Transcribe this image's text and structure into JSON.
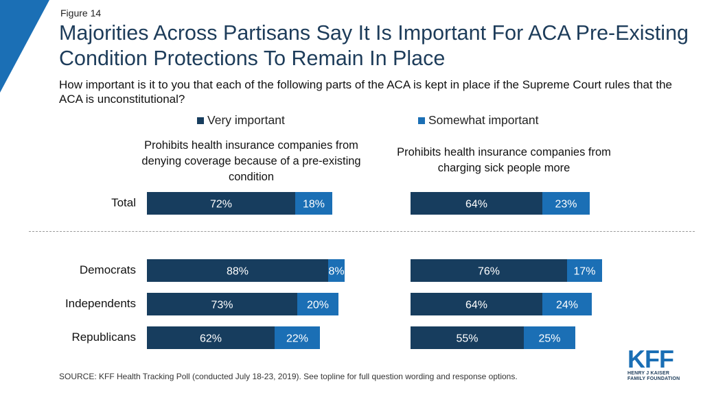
{
  "figure_label": "Figure 14",
  "title": "Majorities Across Partisans Say It Is Important For ACA Pre-Existing Condition Protections To Remain In Place",
  "subtitle": "How important is it to you that each of the following parts of the ACA is kept in place if the Supreme Court rules that the ACA is unconstitutional?",
  "source": "SOURCE: KFF Health Tracking Poll (conducted July 18-23, 2019). See topline for full question wording and response options.",
  "logo": {
    "mark": "KFF",
    "line1": "HENRY J KAISER",
    "line2": "FAMILY FOUNDATION"
  },
  "colors": {
    "very": "#173d5e",
    "somewhat": "#1b6fb5",
    "accent": "#1b6fb5"
  },
  "chart_data": {
    "type": "bar",
    "orientation": "horizontal",
    "stacked": true,
    "legend": {
      "placement": "top",
      "items": [
        "Very important",
        "Somewhat important"
      ]
    },
    "categories": [
      "Total",
      "Democrats",
      "Independents",
      "Republicans"
    ],
    "panels": [
      {
        "title": "Prohibits health insurance companies from denying coverage because of a pre-existing condition",
        "series": [
          {
            "name": "Very important",
            "values": [
              72,
              88,
              73,
              62
            ],
            "labels": [
              "72%",
              "88%",
              "73%",
              "62%"
            ]
          },
          {
            "name": "Somewhat important",
            "values": [
              18,
              8,
              20,
              22
            ],
            "labels": [
              "18%",
              "8%",
              "20%",
              "22%"
            ]
          }
        ]
      },
      {
        "title": "Prohibits health insurance companies from charging sick people more",
        "series": [
          {
            "name": "Very important",
            "values": [
              64,
              76,
              64,
              55
            ],
            "labels": [
              "64%",
              "76%",
              "64%",
              "55%"
            ]
          },
          {
            "name": "Somewhat important",
            "values": [
              23,
              17,
              24,
              25
            ],
            "labels": [
              "23%",
              "17%",
              "24%",
              "25%"
            ]
          }
        ]
      }
    ]
  }
}
